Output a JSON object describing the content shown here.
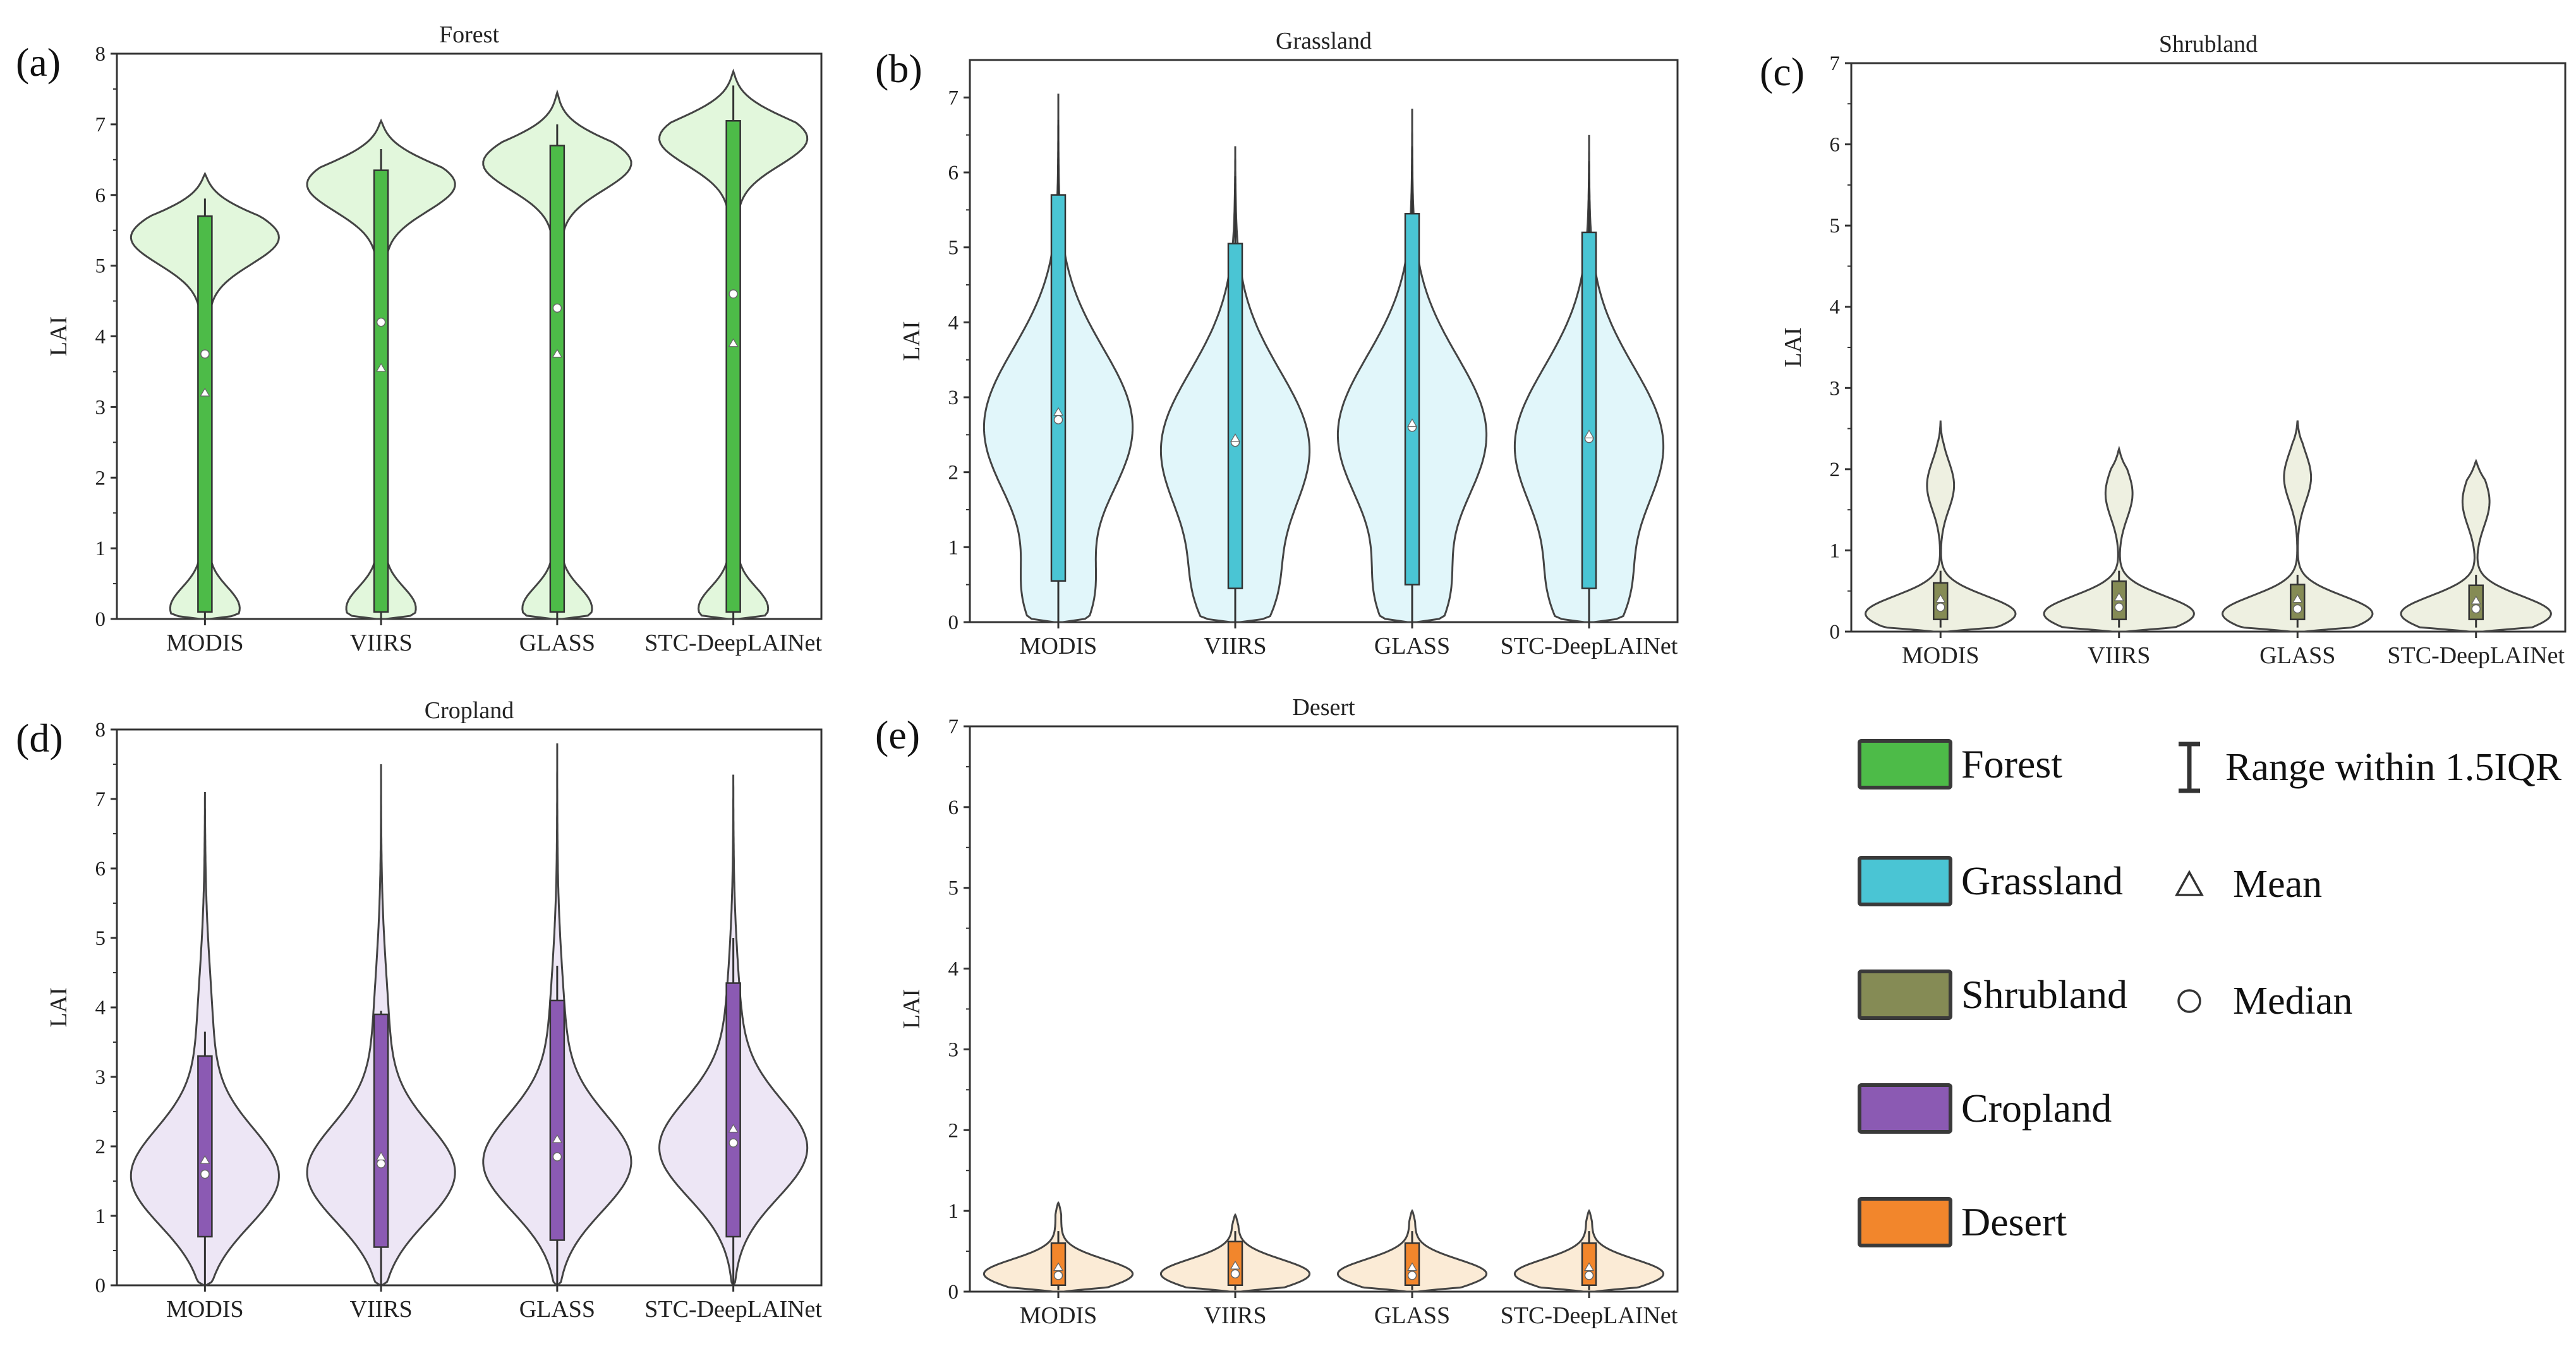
{
  "chart_data": [
    {
      "type": "violin",
      "panel_label": "(a)",
      "title": "Forest",
      "ylabel": "LAI",
      "ylim": [
        0,
        8
      ],
      "yticks": [
        "0",
        "1",
        "2",
        "3",
        "4",
        "5",
        "6",
        "7",
        "8"
      ],
      "color": "#4dbb48",
      "fill": "#e2f7dc",
      "categories": [
        "MODIS",
        "VIIRS",
        "GLASS",
        "STC-DeepLAINet"
      ],
      "box": [
        {
          "q1": 0.1,
          "q3": 5.7,
          "whisker_low": 0.0,
          "whisker_high": 5.95,
          "median": 3.75,
          "mean": 3.2,
          "max": 6.3
        },
        {
          "q1": 0.1,
          "q3": 6.35,
          "whisker_low": 0.0,
          "whisker_high": 6.65,
          "median": 4.2,
          "mean": 3.55,
          "max": 7.05
        },
        {
          "q1": 0.1,
          "q3": 6.7,
          "whisker_low": 0.0,
          "whisker_high": 7.0,
          "median": 4.4,
          "mean": 3.75,
          "max": 7.45
        },
        {
          "q1": 0.1,
          "q3": 7.05,
          "whisker_low": 0.0,
          "whisker_high": 7.55,
          "median": 4.6,
          "mean": 3.9,
          "max": 7.75
        }
      ]
    },
    {
      "type": "violin",
      "panel_label": "(b)",
      "title": "Grassland",
      "ylabel": "LAI",
      "ylim": [
        0,
        7.5
      ],
      "yticks": [
        "0",
        "1",
        "2",
        "3",
        "4",
        "5",
        "6",
        "7"
      ],
      "color": "#4ac5d4",
      "fill": "#e1f6fa",
      "categories": [
        "MODIS",
        "VIIRS",
        "GLASS",
        "STC-DeepLAINet"
      ],
      "box": [
        {
          "q1": 0.55,
          "q3": 5.7,
          "whisker_low": 0.0,
          "whisker_high": 6.7,
          "median": 2.7,
          "mean": 2.8,
          "max": 7.05
        },
        {
          "q1": 0.45,
          "q3": 5.05,
          "whisker_low": 0.0,
          "whisker_high": 5.95,
          "median": 2.4,
          "mean": 2.45,
          "max": 6.35
        },
        {
          "q1": 0.5,
          "q3": 5.45,
          "whisker_low": 0.0,
          "whisker_high": 6.35,
          "median": 2.6,
          "mean": 2.65,
          "max": 6.85
        },
        {
          "q1": 0.45,
          "q3": 5.2,
          "whisker_low": 0.0,
          "whisker_high": 6.15,
          "median": 2.45,
          "mean": 2.5,
          "max": 6.5
        }
      ]
    },
    {
      "type": "violin",
      "panel_label": "(c)",
      "title": "Shrubland",
      "ylabel": "LAI",
      "ylim": [
        0,
        7
      ],
      "yticks": [
        "0",
        "1",
        "2",
        "3",
        "4",
        "5",
        "6",
        "7"
      ],
      "color": "#858b55",
      "fill": "#eef0e1",
      "categories": [
        "MODIS",
        "VIIRS",
        "GLASS",
        "STC-DeepLAINet"
      ],
      "box": [
        {
          "q1": 0.15,
          "q3": 0.6,
          "whisker_low": 0.05,
          "whisker_high": 0.75,
          "median": 0.3,
          "mean": 0.4,
          "max": 2.6
        },
        {
          "q1": 0.15,
          "q3": 0.62,
          "whisker_low": 0.05,
          "whisker_high": 0.75,
          "median": 0.3,
          "mean": 0.42,
          "max": 2.25
        },
        {
          "q1": 0.15,
          "q3": 0.58,
          "whisker_low": 0.05,
          "whisker_high": 0.7,
          "median": 0.28,
          "mean": 0.4,
          "max": 2.6
        },
        {
          "q1": 0.15,
          "q3": 0.57,
          "whisker_low": 0.05,
          "whisker_high": 0.7,
          "median": 0.28,
          "mean": 0.38,
          "max": 2.1
        }
      ]
    },
    {
      "type": "violin",
      "panel_label": "(d)",
      "title": "Cropland",
      "ylabel": "LAI",
      "ylim": [
        0,
        8
      ],
      "yticks": [
        "0",
        "1",
        "2",
        "3",
        "4",
        "5",
        "6",
        "7",
        "8"
      ],
      "color": "#8b5ab3",
      "fill": "#ede6f5",
      "categories": [
        "MODIS",
        "VIIRS",
        "GLASS",
        "STC-DeepLAINet"
      ],
      "box": [
        {
          "q1": 0.7,
          "q3": 3.3,
          "whisker_low": 0.0,
          "whisker_high": 3.65,
          "median": 1.6,
          "mean": 1.8,
          "max": 7.1
        },
        {
          "q1": 0.55,
          "q3": 3.9,
          "whisker_low": 0.0,
          "whisker_high": 3.95,
          "median": 1.75,
          "mean": 1.85,
          "max": 7.5
        },
        {
          "q1": 0.65,
          "q3": 4.1,
          "whisker_low": 0.0,
          "whisker_high": 4.6,
          "median": 1.85,
          "mean": 2.1,
          "max": 7.8
        },
        {
          "q1": 0.7,
          "q3": 4.35,
          "whisker_low": 0.0,
          "whisker_high": 5.0,
          "median": 2.05,
          "mean": 2.25,
          "max": 7.35
        }
      ]
    },
    {
      "type": "violin",
      "panel_label": "(e)",
      "title": "Desert",
      "ylabel": "LAI",
      "ylim": [
        0,
        7
      ],
      "yticks": [
        "0",
        "1",
        "2",
        "3",
        "4",
        "5",
        "6",
        "7"
      ],
      "color": "#f2862c",
      "fill": "#fbebd6",
      "categories": [
        "MODIS",
        "VIIRS",
        "GLASS",
        "STC-DeepLAINet"
      ],
      "box": [
        {
          "q1": 0.08,
          "q3": 0.6,
          "whisker_low": 0.02,
          "whisker_high": 0.75,
          "median": 0.2,
          "mean": 0.3,
          "max": 1.1
        },
        {
          "q1": 0.08,
          "q3": 0.62,
          "whisker_low": 0.02,
          "whisker_high": 0.75,
          "median": 0.22,
          "mean": 0.32,
          "max": 0.95
        },
        {
          "q1": 0.08,
          "q3": 0.6,
          "whisker_low": 0.02,
          "whisker_high": 0.75,
          "median": 0.2,
          "mean": 0.3,
          "max": 1.0
        },
        {
          "q1": 0.08,
          "q3": 0.6,
          "whisker_low": 0.02,
          "whisker_high": 0.75,
          "median": 0.2,
          "mean": 0.3,
          "max": 1.0
        }
      ]
    }
  ],
  "legend": {
    "classes": [
      {
        "label": "Forest",
        "color": "#4dbb48"
      },
      {
        "label": "Grassland",
        "color": "#4ac5d4"
      },
      {
        "label": "Shrubland",
        "color": "#858b55"
      },
      {
        "label": "Cropland",
        "color": "#8b5ab3"
      },
      {
        "label": "Desert",
        "color": "#f2862c"
      }
    ],
    "range_label": "Range within 1.5IQR",
    "mean_label": "Mean",
    "median_label": "Median"
  }
}
